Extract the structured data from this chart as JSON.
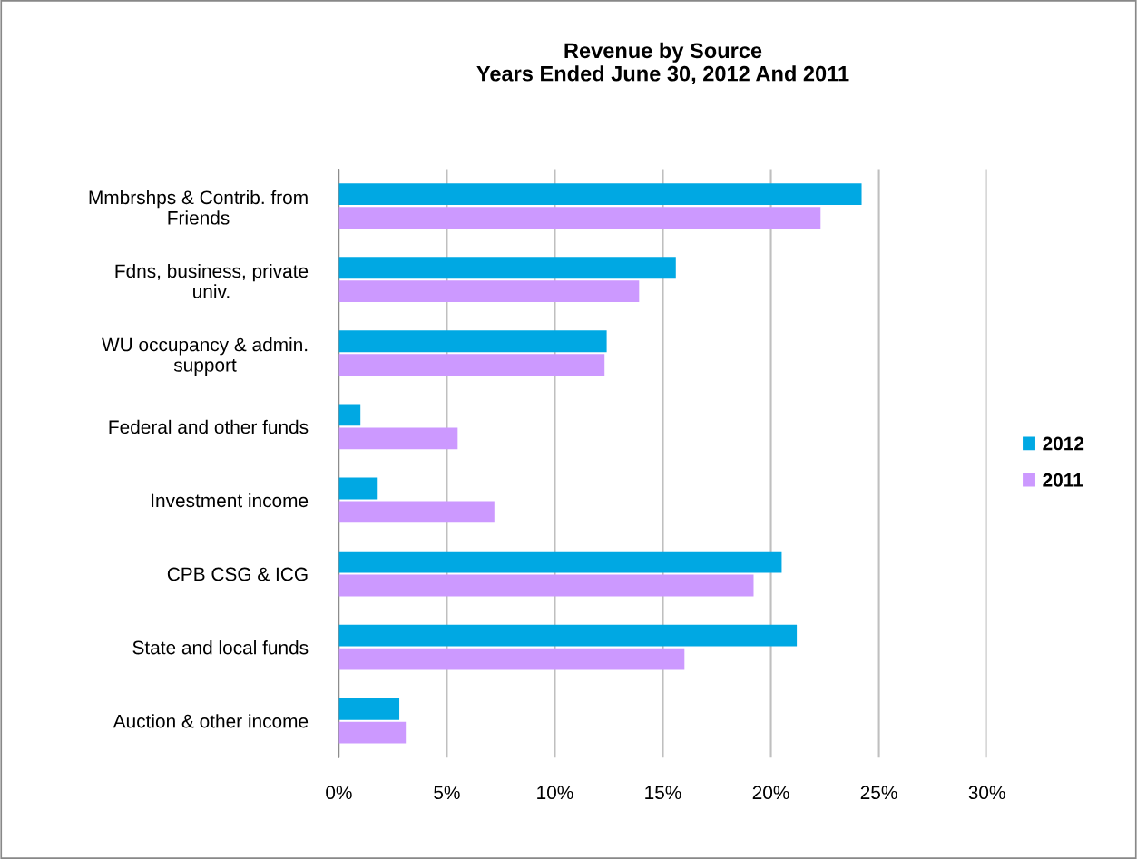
{
  "chart_data": {
    "type": "bar",
    "orientation": "horizontal",
    "title": "Revenue by Source\nYears Ended June 30, 2012 And 2011",
    "categories": [
      "Mmbrshps & Contrib. from\nFriends",
      "Fdns, business, private\nuniv.",
      "WU occupancy & admin.\nsupport",
      "Federal and other funds",
      "Investment income",
      "CPB CSG & ICG",
      "State and local funds",
      "Auction & other income"
    ],
    "series": [
      {
        "name": "2012",
        "color": "#00a8e3",
        "values": [
          24.2,
          15.6,
          12.4,
          1.0,
          1.8,
          20.5,
          21.2,
          2.8
        ]
      },
      {
        "name": "2011",
        "color": "#cc99ff",
        "values": [
          22.3,
          13.9,
          12.3,
          5.5,
          7.2,
          19.2,
          16.0,
          3.1
        ]
      }
    ],
    "xlim": [
      0,
      30
    ],
    "xticks": [
      {
        "value": 0,
        "label": "0%"
      },
      {
        "value": 5,
        "label": "5%"
      },
      {
        "value": 10,
        "label": "10%"
      },
      {
        "value": 15,
        "label": "15%"
      },
      {
        "value": 20,
        "label": "20%"
      },
      {
        "value": 25,
        "label": "25%"
      },
      {
        "value": 30,
        "label": "30%"
      }
    ],
    "grid": "x",
    "legend": "right"
  }
}
